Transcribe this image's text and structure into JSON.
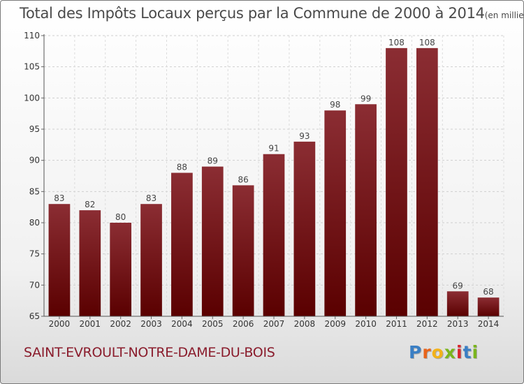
{
  "chart_data": {
    "type": "bar",
    "title": "Total des Impôts Locaux perçus par la Commune de 2000 à 2014",
    "title_unit": "(en milliers d'€)",
    "categories": [
      "2000",
      "2001",
      "2002",
      "2003",
      "2004",
      "2005",
      "2006",
      "2007",
      "2008",
      "2009",
      "2010",
      "2011",
      "2012",
      "2013",
      "2014"
    ],
    "values": [
      83,
      82,
      80,
      83,
      88,
      89,
      86,
      91,
      93,
      98,
      99,
      108,
      108,
      69,
      68
    ],
    "ylim": [
      65,
      110
    ],
    "yticks": [
      65,
      70,
      75,
      80,
      85,
      90,
      95,
      100,
      105,
      110
    ],
    "xlabel": "",
    "ylabel": "",
    "grid": true,
    "bar_color_top": "#8b2d33",
    "bar_color_bottom": "#5a0000"
  },
  "footer": {
    "commune": "SAINT-EVROULT-NOTRE-DAME-DU-BOIS",
    "logo_letters": [
      "P",
      "r",
      "o",
      "x",
      "i",
      "t",
      "i"
    ],
    "logo_colors": [
      "#3b7fc4",
      "#e8641b",
      "#f2b21a",
      "#7ab51d",
      "#d8262f",
      "#3b7fc4",
      "#7ab51d"
    ]
  }
}
